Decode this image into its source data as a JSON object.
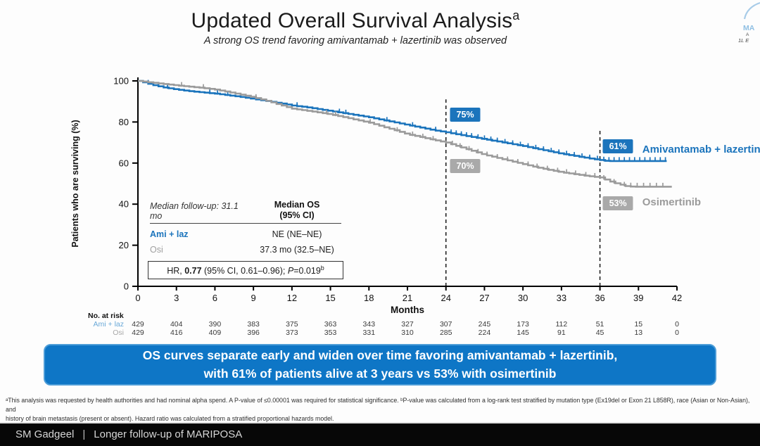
{
  "slide": {
    "title": "Updated Overall Survival Analysis",
    "title_superscript": "a",
    "subtitle": "A strong OS trend favoring amivantamab + lazertinib was observed"
  },
  "logo": {
    "fragments": [
      "MA",
      "A",
      "1L E"
    ]
  },
  "chart_data": {
    "type": "line",
    "subtype": "kaplan-meier",
    "title": "Updated Overall Survival Analysis",
    "xlabel": "Months",
    "ylabel": "Patients who are surviving (%)",
    "xlim": [
      0,
      42
    ],
    "ylim": [
      0,
      100
    ],
    "x_ticks": [
      0,
      3,
      6,
      9,
      12,
      15,
      18,
      21,
      24,
      27,
      30,
      33,
      36,
      39,
      42
    ],
    "y_ticks": [
      0,
      20,
      40,
      60,
      80,
      100
    ],
    "grid": false,
    "series": [
      {
        "name": "Amivantamab + lazertinib",
        "short": "Ami + laz",
        "color": "#1b74bc",
        "points": [
          [
            0,
            100
          ],
          [
            0.5,
            99.2
          ],
          [
            1,
            98.2
          ],
          [
            2,
            96.8
          ],
          [
            3,
            95.8
          ],
          [
            4,
            95
          ],
          [
            5,
            94.4
          ],
          [
            6,
            93.8
          ],
          [
            7,
            93
          ],
          [
            8,
            92.2
          ],
          [
            9,
            91.2
          ],
          [
            10,
            90.2
          ],
          [
            11,
            89.2
          ],
          [
            12,
            88
          ],
          [
            13,
            87.3
          ],
          [
            14,
            86.3
          ],
          [
            15,
            85.3
          ],
          [
            16,
            84.3
          ],
          [
            17,
            83.3
          ],
          [
            18,
            82.3
          ],
          [
            19,
            81
          ],
          [
            20,
            79.8
          ],
          [
            21,
            78.5
          ],
          [
            22,
            77.3
          ],
          [
            23,
            76
          ],
          [
            24,
            75
          ],
          [
            25,
            73.8
          ],
          [
            26,
            72.7
          ],
          [
            27,
            71.6
          ],
          [
            28,
            70.5
          ],
          [
            29,
            69.4
          ],
          [
            30,
            68.3
          ],
          [
            31,
            67
          ],
          [
            32,
            65.8
          ],
          [
            33,
            64.5
          ],
          [
            34,
            63.5
          ],
          [
            35,
            62.4
          ],
          [
            36,
            61.5
          ],
          [
            36.5,
            61
          ],
          [
            41.3,
            61
          ]
        ],
        "censor_ticks": [
          0.8,
          2.3,
          5.6,
          6.2,
          7.0,
          12.4,
          15.7,
          16.2,
          19.4,
          21.4,
          23.2,
          24.4,
          24.8,
          25.2,
          25.6,
          26.0,
          26.5,
          27.0,
          27.5,
          28.0,
          28.6,
          29.2,
          29.8,
          30.4,
          31.0,
          31.6,
          32.2,
          32.8,
          33.4,
          34.0,
          34.6,
          35.2,
          35.8,
          36.3,
          36.7,
          37.1,
          37.5,
          37.9,
          38.3,
          38.7,
          39.1,
          39.5,
          39.9,
          40.3,
          40.7,
          41.1
        ],
        "label_pos": {
          "month": 39.3,
          "pct": 66.6
        }
      },
      {
        "name": "Osimertinib",
        "short": "Osi",
        "color": "#9b9b9b",
        "points": [
          [
            0,
            100
          ],
          [
            0.5,
            99.6
          ],
          [
            1,
            99.2
          ],
          [
            2,
            98.5
          ],
          [
            3,
            97.8
          ],
          [
            4,
            97.2
          ],
          [
            5,
            96.6
          ],
          [
            6,
            95.8
          ],
          [
            7,
            94.6
          ],
          [
            8,
            93.3
          ],
          [
            9,
            92
          ],
          [
            10,
            90.3
          ],
          [
            11,
            88.4
          ],
          [
            12,
            86.5
          ],
          [
            13,
            85.6
          ],
          [
            14,
            84.7
          ],
          [
            15,
            83.7
          ],
          [
            16,
            82.4
          ],
          [
            17,
            81
          ],
          [
            18,
            79.7
          ],
          [
            19,
            77.8
          ],
          [
            20,
            76
          ],
          [
            21,
            74
          ],
          [
            22,
            72.7
          ],
          [
            23,
            71.3
          ],
          [
            24,
            70
          ],
          [
            25,
            68
          ],
          [
            26,
            66
          ],
          [
            27,
            64
          ],
          [
            28,
            62.5
          ],
          [
            29,
            61
          ],
          [
            30,
            59.5
          ],
          [
            31,
            58
          ],
          [
            32,
            56.7
          ],
          [
            33,
            55.5
          ],
          [
            34,
            54.6
          ],
          [
            35,
            53.7
          ],
          [
            36,
            53
          ],
          [
            37,
            50.5
          ],
          [
            38,
            48.8
          ],
          [
            38.5,
            48.5
          ],
          [
            41.6,
            48.5
          ]
        ],
        "censor_ticks": [
          3.4,
          5.1,
          9.2,
          14.7,
          15.4,
          18.1,
          20.2,
          21.4,
          22.2,
          23.0,
          24.5,
          25.1,
          25.8,
          26.5,
          27.2,
          28.0,
          28.8,
          29.6,
          30.4,
          31.1,
          31.9,
          32.7,
          33.4,
          34.1,
          34.9,
          35.6,
          36.3,
          37.1,
          37.9,
          38.4,
          38.9,
          39.4,
          39.9,
          40.4,
          40.9
        ],
        "label_pos": {
          "month": 39.3,
          "pct": 40.7
        }
      }
    ],
    "dashed_lines": [
      {
        "month": 24,
        "top_pct": 91
      },
      {
        "month": 36,
        "top_pct": 76
      }
    ],
    "pct_labels": [
      {
        "text": "75%",
        "month": 25.5,
        "pct": 83.5,
        "color": "#1b74bc"
      },
      {
        "text": "70%",
        "month": 25.5,
        "pct": 58.5,
        "color": "#a9a9a9"
      },
      {
        "text": "61%",
        "month": 37.4,
        "pct": 68.3,
        "color": "#1b74bc"
      },
      {
        "text": "53%",
        "month": 37.4,
        "pct": 40.4,
        "color": "#a9a9a9"
      }
    ],
    "at_risk": {
      "header": "No. at risk",
      "months": [
        0,
        3,
        6,
        9,
        12,
        15,
        18,
        21,
        24,
        27,
        30,
        33,
        36,
        39,
        42
      ],
      "rows": [
        {
          "label": "Ami + laz",
          "label_color": "#6aa9d8",
          "values": [
            429,
            404,
            390,
            383,
            375,
            363,
            343,
            327,
            307,
            245,
            173,
            112,
            51,
            15,
            0
          ]
        },
        {
          "label": "Osi",
          "label_color": "#a8a8a8",
          "values": [
            429,
            416,
            409,
            396,
            373,
            353,
            331,
            310,
            285,
            224,
            145,
            91,
            45,
            13,
            0
          ]
        }
      ]
    }
  },
  "inset": {
    "followup": "Median follow-up: 31.1 mo",
    "col_header_line1": "Median OS",
    "col_header_line2": "(95% CI)",
    "rows": [
      {
        "label": "Ami + laz",
        "value": "NE (NE–NE)"
      },
      {
        "label": "Osi",
        "value": "37.3 mo (32.5–NE)"
      }
    ],
    "hr_prefix": "HR, ",
    "hr_value": "0.77",
    "hr_mid": " (95% CI, 0.61–0.96); ",
    "hr_p": "P",
    "hr_p_rest": "=0.019",
    "hr_sup": "b"
  },
  "banner": {
    "line1": "OS curves separate early and widen over time favoring amivantamab + lazertinib,",
    "line2": "with 61% of patients alive at 3 years vs 53% with osimertinib"
  },
  "footnote": {
    "line1": "ᵃThis analysis was requested by health authorities and had nominal alpha spend. A P-value of ≤0.00001 was required for statistical significance. ᵇP-value was calculated from a log-rank test stratified by mutation type (Ex19del or Exon 21 L858R), race (Asian or Non-Asian), and",
    "line2": "history of brain metastasis (present or absent). Hazard ratio was calculated from a stratified proportional hazards model."
  },
  "footer": {
    "author": "SM Gadgeel",
    "divider": "|",
    "title": "Longer follow-up of MARIPOSA"
  },
  "colors": {
    "ami_blue": "#1b74bc",
    "osi_gray": "#9b9b9b",
    "banner_blue": "#0e76c6",
    "footer_black": "#070707"
  }
}
